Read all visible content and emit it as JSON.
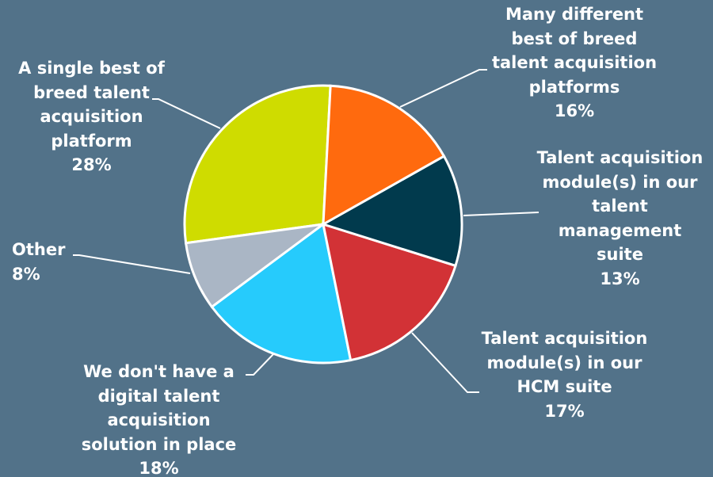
{
  "chart_data": {
    "type": "pie",
    "categories": [
      "Many different best of breed talent acquisition platforms",
      "Talent acquisition module(s) in our talent management suite",
      "Talent acquisition module(s) in our HCM suite",
      "We don't have a digital talent acquisition solution in place",
      "Other",
      "A single best of breed talent acquisition platform"
    ],
    "values": [
      16,
      13,
      17,
      18,
      8,
      28
    ],
    "value_labels": [
      "16%",
      "13%",
      "17%",
      "18%",
      "8%",
      "28%"
    ],
    "colors": [
      "#ff6a0e",
      "#013a4d",
      "#d23236",
      "#26cbfc",
      "#aab6c5",
      "#cfdc00"
    ]
  }
}
